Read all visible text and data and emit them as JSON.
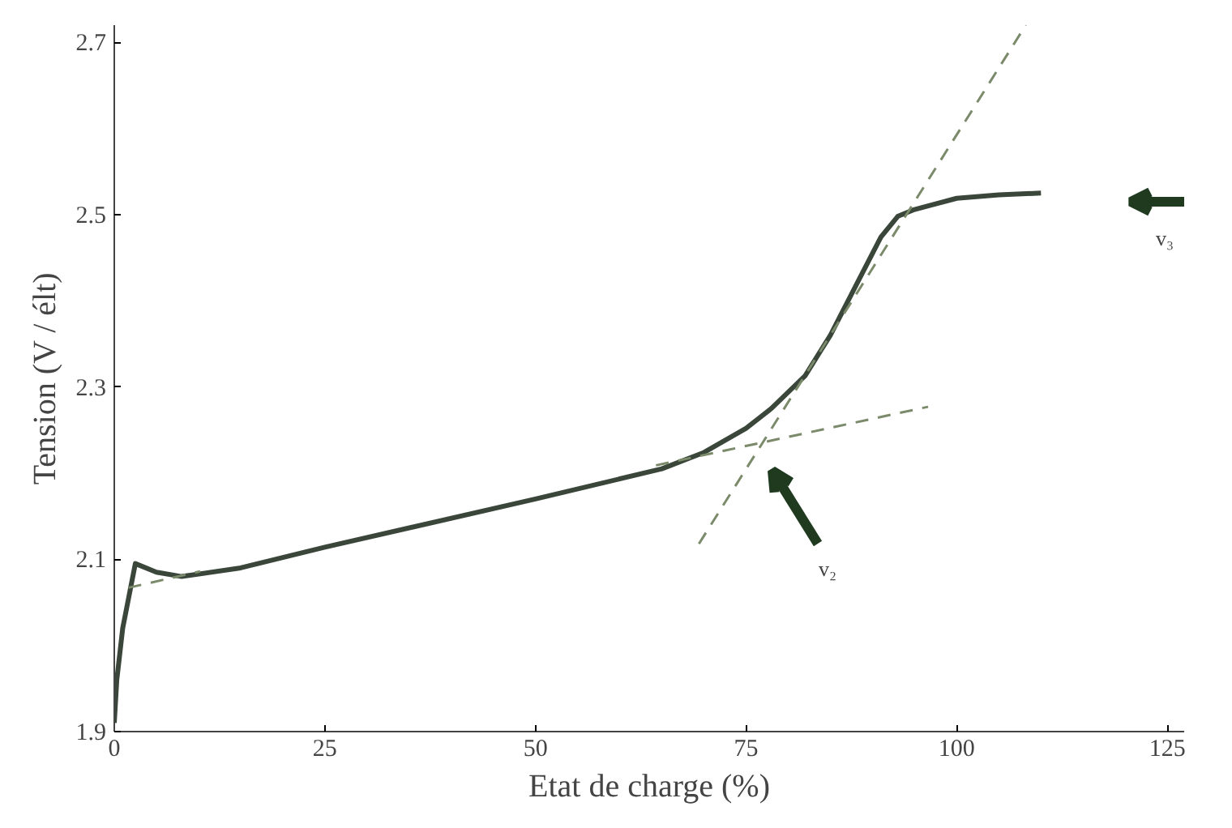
{
  "chart_data": {
    "type": "line",
    "xlabel": "Etat de charge (%)",
    "ylabel": "Tension (V / élt)",
    "xlim": [
      0,
      127
    ],
    "ylim": [
      1.9,
      2.72
    ],
    "xticks": [
      0,
      25,
      50,
      75,
      100,
      125
    ],
    "yticks": [
      1.9,
      2.1,
      2.3,
      2.5,
      2.7
    ],
    "grid": false,
    "marker": "none",
    "series": [
      {
        "color": "#3a463a",
        "line_style": "solid",
        "x": [
          0,
          0.3,
          1,
          2.5,
          5,
          8,
          15,
          25,
          50,
          65,
          70,
          75,
          78,
          82,
          85,
          88,
          91,
          93,
          95,
          100,
          105,
          110
        ],
        "values": [
          1.91,
          1.96,
          2.02,
          2.095,
          2.085,
          2.08,
          2.09,
          2.114,
          2.17,
          2.205,
          2.224,
          2.252,
          2.275,
          2.313,
          2.36,
          2.417,
          2.474,
          2.498,
          2.506,
          2.519,
          2.523,
          2.525
        ]
      },
      {
        "color": "#7a8a6a",
        "line_style": "dashed",
        "x": [
          1.7,
          10.2
        ],
        "values": [
          2.067,
          2.086
        ]
      },
      {
        "color": "#7a8a6a",
        "line_style": "dashed",
        "x": [
          64.3,
          96.6
        ],
        "values": [
          2.209,
          2.277
        ]
      },
      {
        "color": "#7a8a6a",
        "line_style": "dashed",
        "x": [
          69.4,
          108.2
        ],
        "values": [
          2.118,
          2.72
        ]
      }
    ],
    "annotations": [
      "v₂",
      "v₃"
    ]
  }
}
